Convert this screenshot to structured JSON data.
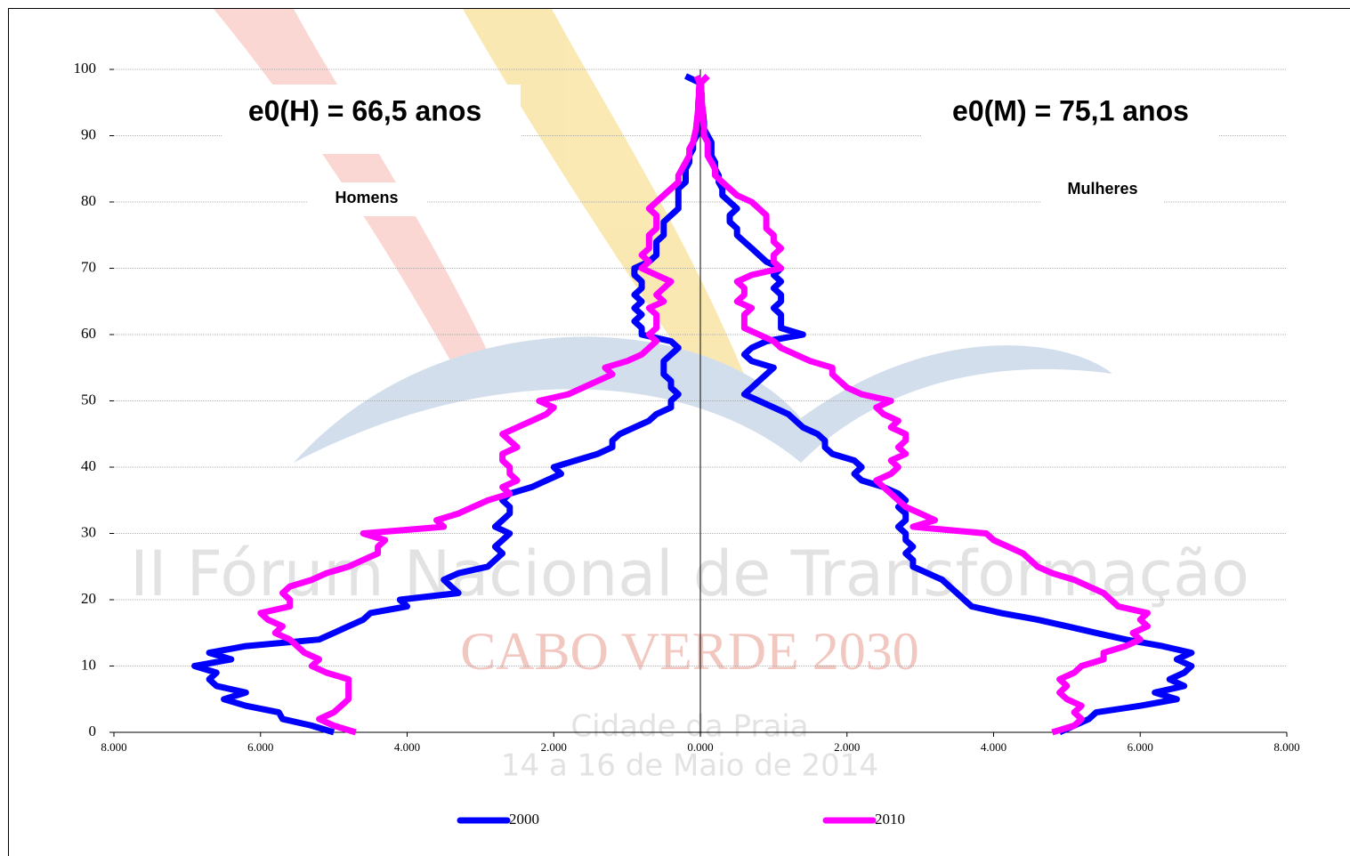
{
  "chart_data": {
    "type": "pyramid-line",
    "annotations": {
      "left_title": "e0(H) = 66,5 anos",
      "right_title": "e0(M) = 75,1 anos",
      "left_label": "Homens",
      "right_label": "Mulheres"
    },
    "watermark": [
      "II Fórum Nacional de Transformação",
      "CABO VERDE 2030",
      "Cidade da Praia",
      "14 a 16 de Maio de 2014"
    ],
    "ages": [
      0,
      1,
      2,
      3,
      4,
      5,
      6,
      7,
      8,
      9,
      10,
      11,
      12,
      13,
      14,
      15,
      16,
      17,
      18,
      19,
      20,
      21,
      22,
      23,
      24,
      25,
      26,
      27,
      28,
      29,
      30,
      31,
      32,
      33,
      34,
      35,
      36,
      37,
      38,
      39,
      40,
      41,
      42,
      43,
      44,
      45,
      46,
      47,
      48,
      49,
      50,
      51,
      52,
      53,
      54,
      55,
      56,
      57,
      58,
      59,
      60,
      61,
      62,
      63,
      64,
      65,
      66,
      67,
      68,
      69,
      70,
      71,
      72,
      73,
      74,
      75,
      76,
      77,
      78,
      79,
      80,
      81,
      82,
      83,
      84,
      85,
      86,
      87,
      88,
      89,
      90,
      91,
      92,
      93,
      94,
      95,
      96,
      97,
      98,
      99
    ],
    "xlim": [
      -8000,
      8000
    ],
    "xticks": [
      {
        "value": -8000,
        "label": "8.000"
      },
      {
        "value": -6000,
        "label": "6.000"
      },
      {
        "value": -4000,
        "label": "4.000"
      },
      {
        "value": -2000,
        "label": "2.000"
      },
      {
        "value": 0,
        "label": "0.000"
      },
      {
        "value": 2000,
        "label": "2.000"
      },
      {
        "value": 4000,
        "label": "4.000"
      },
      {
        "value": 6000,
        "label": "6.000"
      },
      {
        "value": 8000,
        "label": "8.000"
      }
    ],
    "ylim": [
      0,
      100
    ],
    "yticks": [
      0,
      10,
      20,
      30,
      40,
      50,
      60,
      70,
      80,
      90,
      100
    ],
    "grid": true,
    "series": [
      {
        "name": "2000",
        "color": "#0000ff",
        "men": [
          -5000,
          -5300,
          -5700,
          -5750,
          -6200,
          -6500,
          -6200,
          -6600,
          -6700,
          -6600,
          -6900,
          -6400,
          -6700,
          -6200,
          -5200,
          -5000,
          -4800,
          -4600,
          -4500,
          -4000,
          -4100,
          -3300,
          -3400,
          -3500,
          -3300,
          -2900,
          -2800,
          -2700,
          -2800,
          -2700,
          -2600,
          -2800,
          -2700,
          -2600,
          -2600,
          -2700,
          -2600,
          -2300,
          -2100,
          -1900,
          -2000,
          -1700,
          -1400,
          -1200,
          -1200,
          -1100,
          -900,
          -700,
          -600,
          -400,
          -400,
          -300,
          -400,
          -400,
          -500,
          -500,
          -500,
          -400,
          -300,
          -400,
          -800,
          -800,
          -900,
          -800,
          -900,
          -800,
          -900,
          -800,
          -800,
          -900,
          -900,
          -700,
          -600,
          -600,
          -600,
          -500,
          -500,
          -500,
          -400,
          -300,
          -300,
          -300,
          -300,
          -200,
          -200,
          -200,
          -150,
          -150,
          -100,
          -100,
          -50,
          -50,
          -50,
          -30,
          -30,
          -20,
          -20,
          -10,
          -10,
          -200
        ],
        "women": [
          4900,
          5100,
          5300,
          5400,
          6000,
          6500,
          6200,
          6600,
          6400,
          6600,
          6700,
          6500,
          6700,
          6300,
          5800,
          5400,
          5000,
          4600,
          4100,
          3700,
          3600,
          3500,
          3400,
          3300,
          3100,
          2900,
          2900,
          2800,
          2900,
          2800,
          2800,
          2700,
          2800,
          2800,
          2700,
          2800,
          2700,
          2500,
          2200,
          2100,
          2200,
          2100,
          1800,
          1700,
          1700,
          1600,
          1400,
          1300,
          1200,
          1000,
          800,
          600,
          700,
          800,
          900,
          1000,
          700,
          600,
          700,
          900,
          1400,
          1100,
          1100,
          1100,
          1000,
          1100,
          1100,
          1000,
          1100,
          1000,
          1100,
          900,
          800,
          700,
          600,
          500,
          500,
          400,
          400,
          500,
          400,
          300,
          300,
          250,
          250,
          200,
          200,
          150,
          150,
          150,
          100,
          50,
          50,
          40,
          30,
          20,
          20,
          10,
          10,
          100
        ]
      },
      {
        "name": "2010",
        "color": "#ff00ff",
        "men": [
          -4700,
          -5000,
          -5200,
          -5000,
          -4900,
          -4800,
          -4800,
          -4800,
          -4800,
          -5100,
          -5300,
          -5200,
          -5400,
          -5500,
          -5600,
          -5800,
          -5700,
          -5900,
          -6000,
          -5600,
          -5600,
          -5700,
          -5600,
          -5300,
          -5100,
          -4800,
          -4600,
          -4400,
          -4400,
          -4300,
          -4600,
          -3500,
          -3600,
          -3300,
          -3100,
          -2900,
          -2600,
          -2700,
          -2500,
          -2600,
          -2600,
          -2700,
          -2700,
          -2500,
          -2600,
          -2700,
          -2500,
          -2300,
          -2100,
          -2000,
          -2200,
          -1800,
          -1600,
          -1400,
          -1200,
          -1300,
          -1000,
          -800,
          -700,
          -600,
          -700,
          -600,
          -600,
          -600,
          -700,
          -500,
          -600,
          -500,
          -400,
          -600,
          -800,
          -700,
          -800,
          -700,
          -700,
          -700,
          -600,
          -600,
          -600,
          -700,
          -600,
          -500,
          -400,
          -300,
          -300,
          -250,
          -200,
          -150,
          -150,
          -100,
          -80,
          -60,
          -50,
          -40,
          -30,
          -30,
          -20,
          -20,
          -10,
          -50
        ],
        "women": [
          4800,
          5100,
          5200,
          5100,
          5200,
          5000,
          4900,
          5000,
          4900,
          5100,
          5200,
          5500,
          5500,
          5800,
          6000,
          5900,
          6100,
          6000,
          6100,
          5700,
          5600,
          5500,
          5300,
          5100,
          4800,
          4600,
          4500,
          4400,
          4200,
          4000,
          3900,
          2900,
          3200,
          3000,
          2800,
          2700,
          2600,
          2500,
          2400,
          2600,
          2700,
          2600,
          2800,
          2700,
          2800,
          2800,
          2600,
          2700,
          2500,
          2400,
          2600,
          2200,
          2000,
          1900,
          1800,
          1800,
          1500,
          1300,
          1100,
          1000,
          800,
          600,
          600,
          600,
          700,
          500,
          600,
          600,
          500,
          700,
          1100,
          1000,
          1000,
          1100,
          1000,
          1000,
          900,
          900,
          900,
          800,
          700,
          500,
          400,
          300,
          200,
          200,
          150,
          100,
          100,
          100,
          50,
          50,
          40,
          30,
          30,
          20,
          20,
          10,
          10,
          100
        ]
      }
    ]
  }
}
